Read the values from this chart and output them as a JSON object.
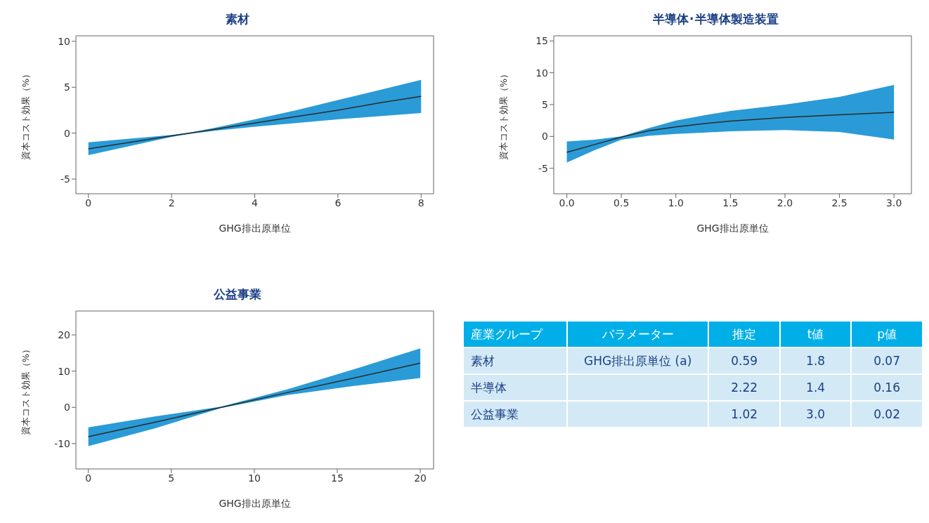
{
  "chart_data": [
    {
      "type": "line",
      "title": "素材",
      "xlabel": "GHG排出原単位",
      "ylabel": "資本コスト効果（%）",
      "xlim": [
        -0.3,
        8.3
      ],
      "ylim": [
        -6.6,
        10.6
      ],
      "xticks": [
        0,
        2,
        4,
        6,
        8
      ],
      "yticks": [
        -5,
        0,
        5,
        10
      ],
      "grid": false,
      "legend": false,
      "marker": "none",
      "line_style": "solid",
      "series": [
        {
          "color": "#2b2b2b",
          "x": [
            0,
            1,
            2,
            2.5,
            3,
            4,
            5,
            6,
            7,
            8
          ],
          "values": [
            -1.7,
            -1.0,
            -0.3,
            0.05,
            0.4,
            1.1,
            1.8,
            2.5,
            3.3,
            4.0
          ],
          "lower": [
            -2.4,
            -1.4,
            -0.4,
            -0.05,
            0.25,
            0.7,
            1.1,
            1.5,
            1.85,
            2.2
          ],
          "upper": [
            -1.0,
            -0.6,
            -0.2,
            0.1,
            0.55,
            1.5,
            2.5,
            3.6,
            4.7,
            5.8
          ]
        }
      ]
    },
    {
      "type": "line",
      "title": "半導体･半導体製造装置",
      "xlabel": "GHG排出原単位",
      "ylabel": "資本コスト効果（%）",
      "xlim": [
        -0.12,
        3.16
      ],
      "ylim": [
        -9,
        15.8
      ],
      "xticks": [
        {
          "value": 0,
          "label": "0.0"
        },
        0.5,
        {
          "value": 1,
          "label": "1.0"
        },
        1.5,
        {
          "value": 2,
          "label": "2.0"
        },
        2.5,
        {
          "value": 3,
          "label": "3.0"
        }
      ],
      "yticks": [
        -5,
        0,
        5,
        10,
        15
      ],
      "grid": false,
      "legend": false,
      "marker": "none",
      "line_style": "solid",
      "series": [
        {
          "color": "#2b2b2b",
          "x": [
            0,
            0.25,
            0.5,
            0.75,
            1,
            1.25,
            1.5,
            2,
            2.5,
            3
          ],
          "values": [
            -2.5,
            -1.3,
            -0.1,
            0.9,
            1.5,
            2.0,
            2.4,
            3.0,
            3.4,
            3.8
          ],
          "lower": [
            -4.1,
            -2.2,
            -0.5,
            0.1,
            0.4,
            0.6,
            0.8,
            1.0,
            0.7,
            -0.5
          ],
          "upper": [
            -0.8,
            -0.5,
            0.0,
            1.3,
            2.5,
            3.3,
            4.0,
            5.0,
            6.2,
            8.1
          ]
        }
      ]
    },
    {
      "type": "line",
      "title": "公益事業",
      "xlabel": "GHG排出原単位",
      "ylabel": "資本コスト効果（%）",
      "xlim": [
        -0.75,
        20.8
      ],
      "ylim": [
        -17,
        26.6
      ],
      "xticks": [
        0,
        5,
        10,
        15,
        20
      ],
      "yticks": [
        -10,
        0,
        10,
        20
      ],
      "grid": false,
      "legend": false,
      "marker": "none",
      "line_style": "solid",
      "series": [
        {
          "color": "#2b2b2b",
          "x": [
            0,
            4,
            8,
            12,
            16,
            20
          ],
          "values": [
            -8.1,
            -4.1,
            0,
            4.1,
            8.1,
            12.2
          ],
          "lower": [
            -10.7,
            -5.8,
            -0.2,
            3.4,
            5.9,
            8.1
          ],
          "upper": [
            -5.5,
            -2.5,
            0.2,
            5.0,
            10.5,
            16.3
          ]
        }
      ]
    },
    {
      "type": "other",
      "categories": [
        "産業グループ",
        "パラメーター",
        "推定",
        "t値",
        "p値"
      ],
      "cell_labels": [
        [
          "素材",
          "GHG排出原単位 (a)",
          "0.59",
          "1.8",
          "0.07"
        ],
        [
          "半導体",
          null,
          "2.22",
          "1.4",
          "0.16"
        ],
        [
          "公益事業",
          null,
          "1.02",
          "3.0",
          "0.02"
        ]
      ]
    }
  ]
}
